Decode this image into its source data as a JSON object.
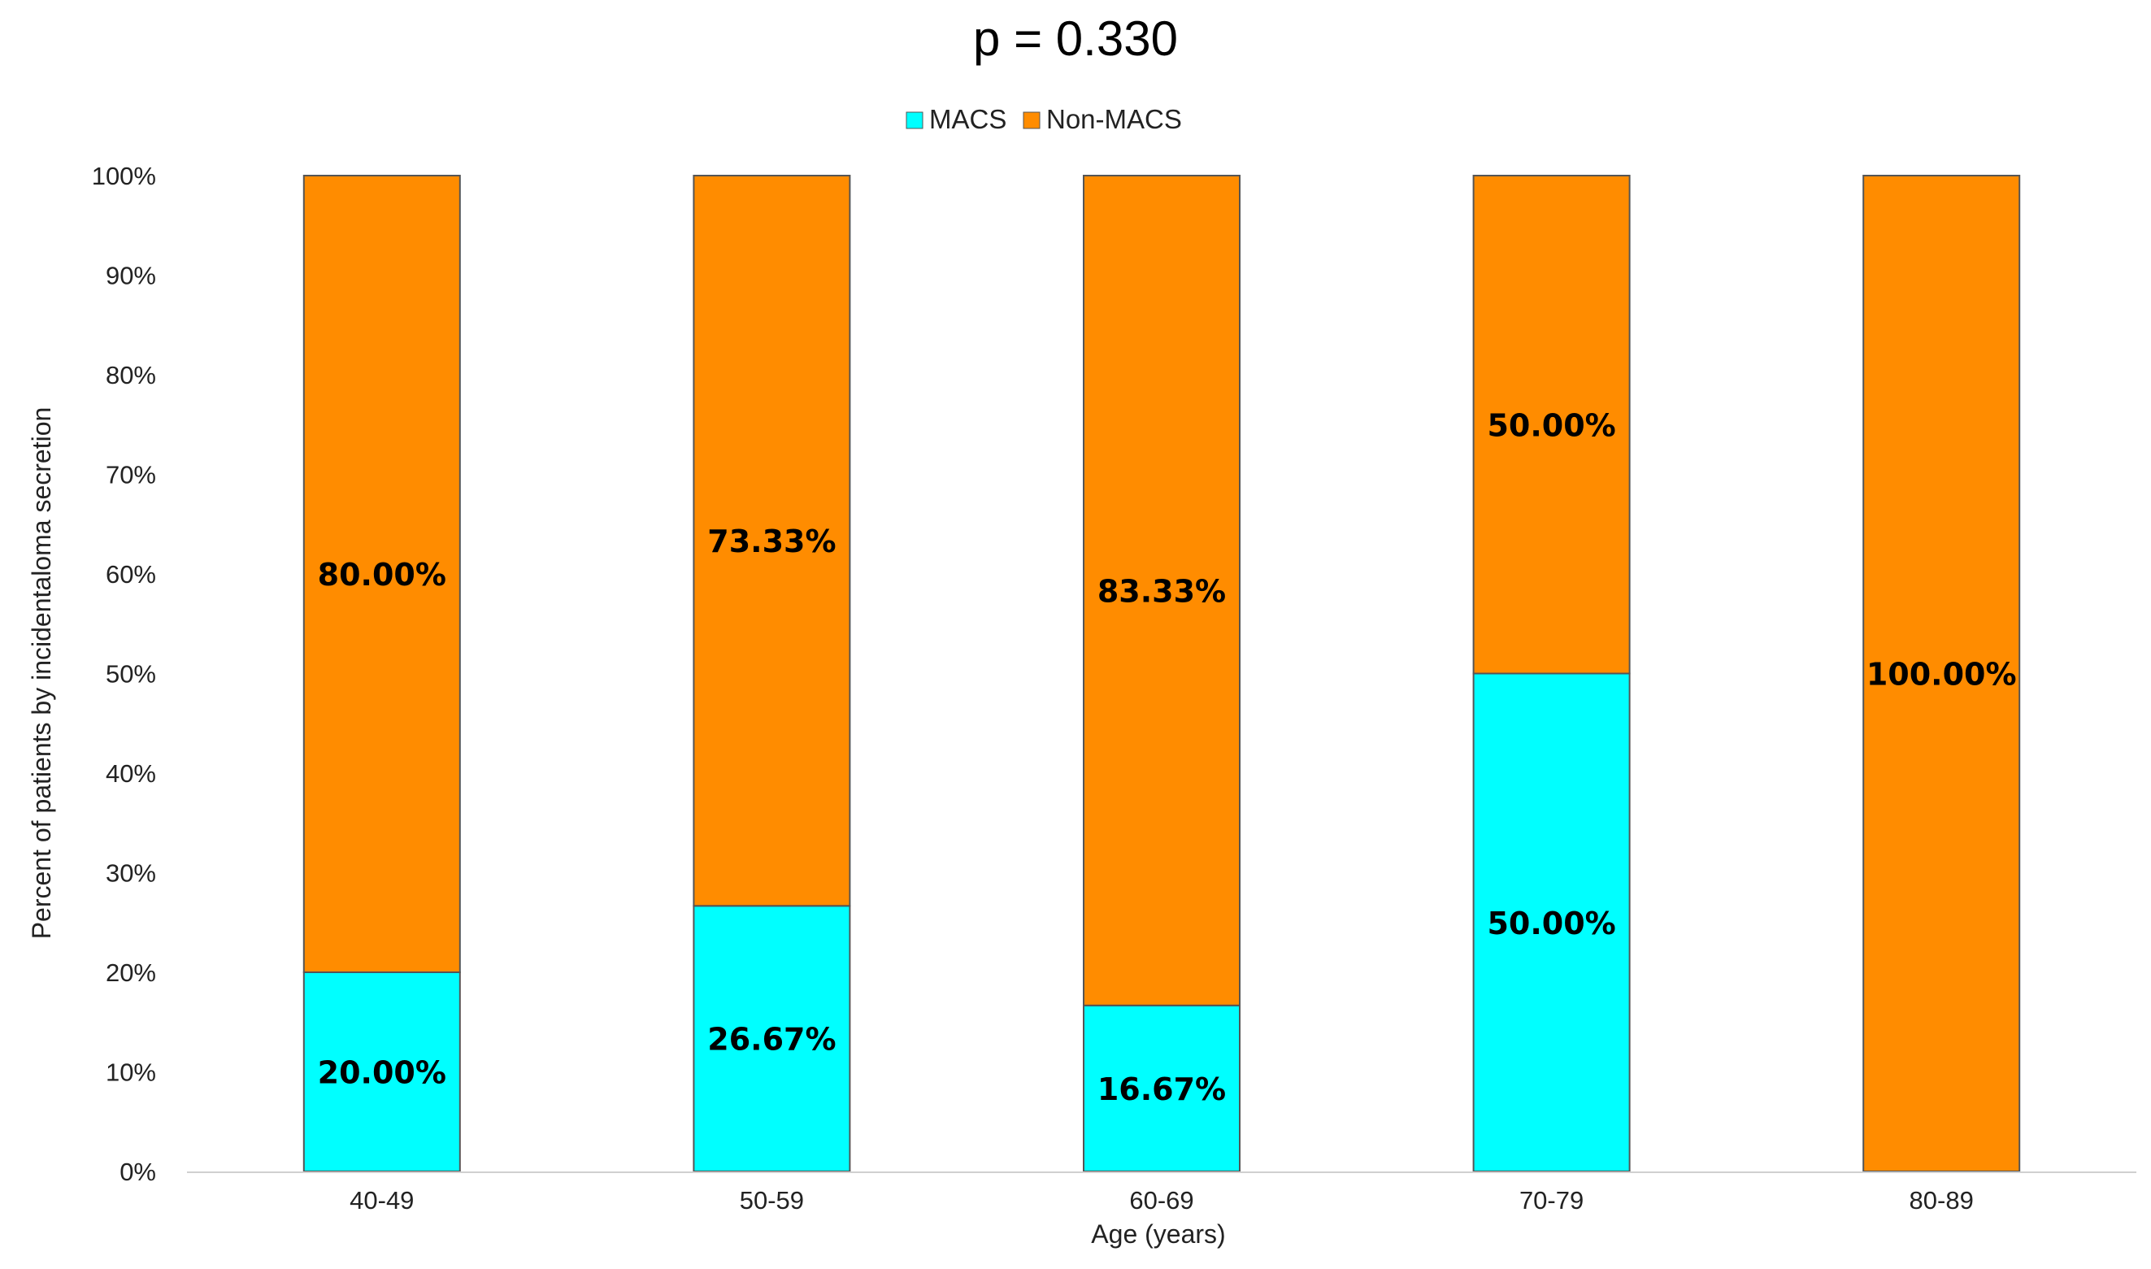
{
  "chart_data": {
    "type": "bar",
    "stacked": true,
    "title": "p = 0.330",
    "xlabel": "Age (years)",
    "ylabel": "Percent of patients by incidentaloma secretion",
    "ylim": [
      0,
      100
    ],
    "yticks": [
      0,
      10,
      20,
      30,
      40,
      50,
      60,
      70,
      80,
      90,
      100
    ],
    "ytick_suffix": "%",
    "categories": [
      "40-49",
      "50-59",
      "60-69",
      "70-79",
      "80-89"
    ],
    "series": [
      {
        "name": "MACS",
        "color": "#00FFFF",
        "values": [
          20.0,
          26.67,
          16.67,
          50.0,
          0
        ],
        "labels": [
          "20.00%",
          "26.67%",
          "16.67%",
          "50.00%",
          ""
        ]
      },
      {
        "name": "Non-MACS",
        "color": "#FF8C00",
        "values": [
          80.0,
          73.33,
          83.33,
          50.0,
          100.0
        ],
        "labels": [
          "80.00%",
          "73.33%",
          "83.33%",
          "50.00%",
          "100.00%"
        ]
      }
    ],
    "legend_position": "top-center",
    "grid": false
  }
}
